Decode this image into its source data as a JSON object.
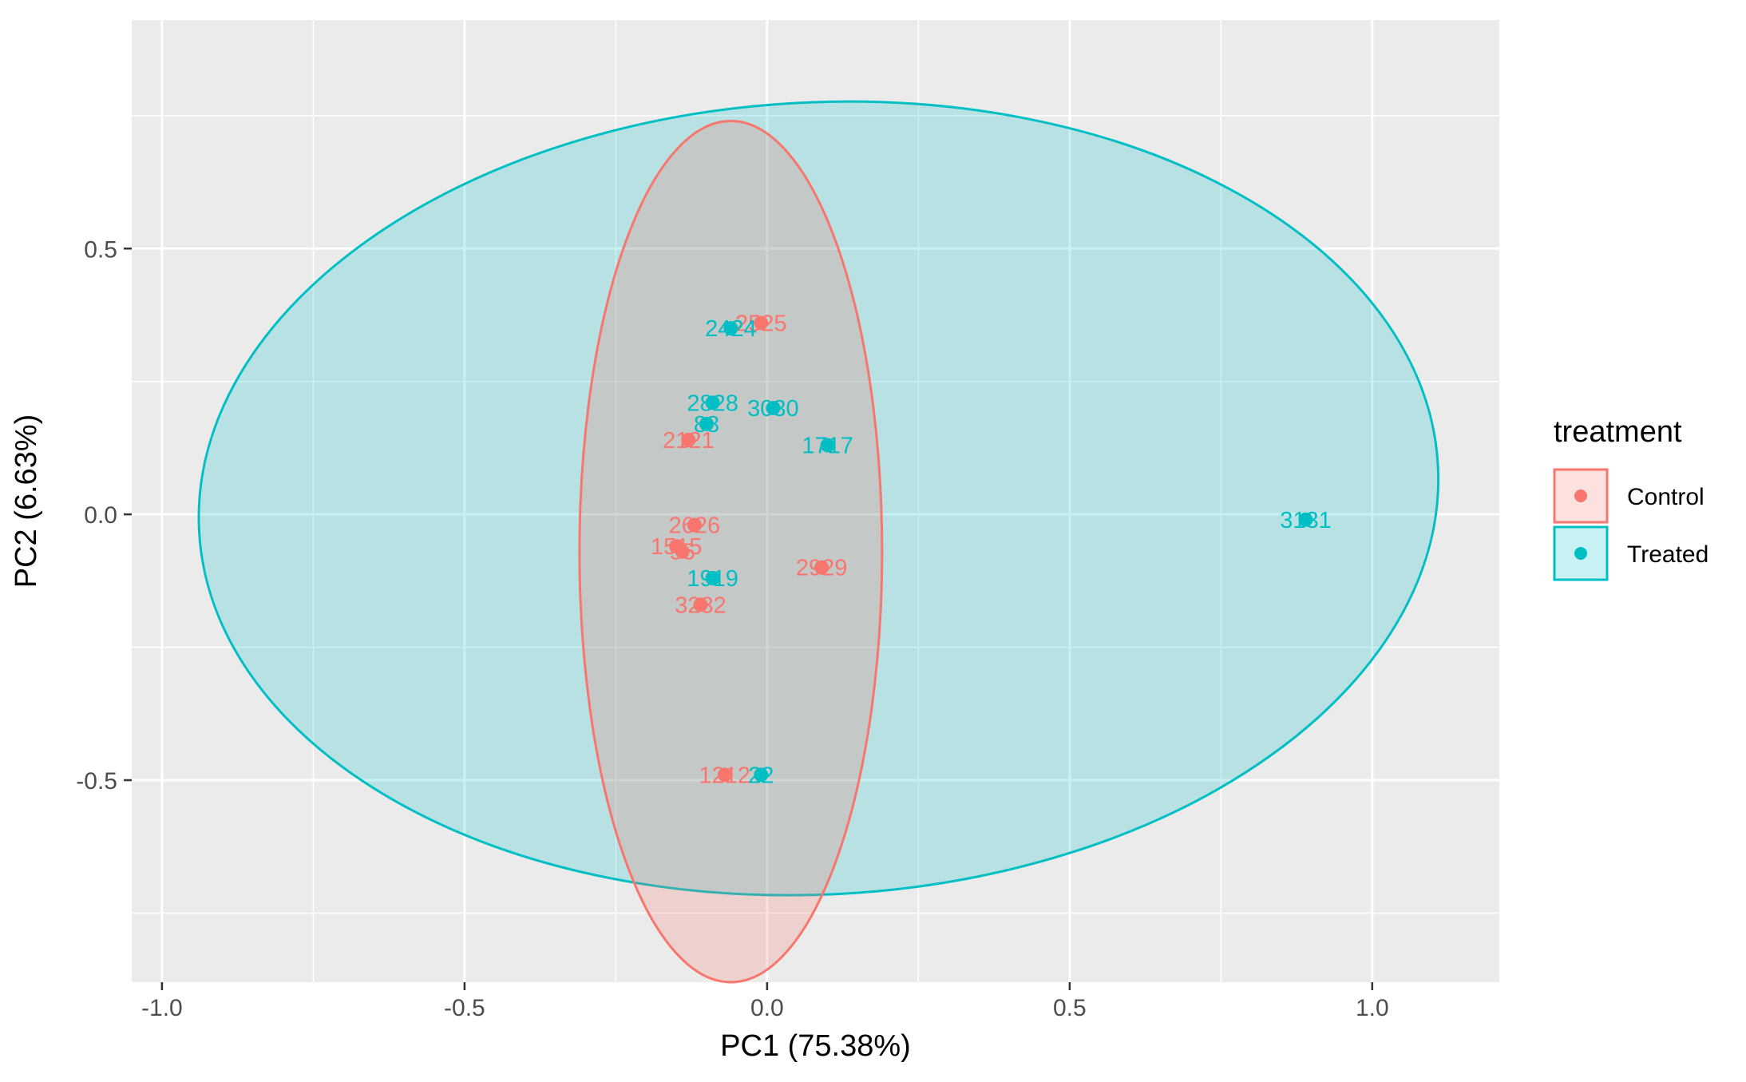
{
  "chart_data": {
    "type": "scatter",
    "title": "",
    "xlabel": "PC1 (75.38%)",
    "ylabel": "PC2 (6.63%)",
    "xlim": [
      -1.05,
      1.21
    ],
    "ylim": [
      -0.88,
      0.93
    ],
    "x_ticks": [
      {
        "value": -1.0,
        "label": "-1.0"
      },
      {
        "value": -0.5,
        "label": "-0.5"
      },
      {
        "value": 0.0,
        "label": "0.0"
      },
      {
        "value": 0.5,
        "label": "0.5"
      },
      {
        "value": 1.0,
        "label": "1.0"
      }
    ],
    "y_ticks": [
      {
        "value": -0.5,
        "label": "-0.5"
      },
      {
        "value": 0.0,
        "label": "0.0"
      },
      {
        "value": 0.5,
        "label": "0.5"
      }
    ],
    "grid": true,
    "background": "#ebebeb",
    "legend": {
      "title": "treatment",
      "placement": "right",
      "entries": [
        {
          "name": "Control",
          "color": "#F8766D"
        },
        {
          "name": "Treated",
          "color": "#00BFC4"
        }
      ]
    },
    "series": [
      {
        "name": "Control",
        "color": "#F8766D",
        "points": [
          {
            "x": -0.01,
            "y": 0.36,
            "label": "2525"
          },
          {
            "x": -0.13,
            "y": 0.14,
            "label": "2121"
          },
          {
            "x": -0.12,
            "y": -0.02,
            "label": "2626"
          },
          {
            "x": -0.15,
            "y": -0.06,
            "label": "1515"
          },
          {
            "x": -0.14,
            "y": -0.07,
            "label": "55"
          },
          {
            "x": 0.09,
            "y": -0.1,
            "label": "2929"
          },
          {
            "x": -0.11,
            "y": -0.17,
            "label": "3232"
          },
          {
            "x": -0.07,
            "y": -0.49,
            "label": "1212"
          }
        ],
        "ellipse": {
          "center": [
            -0.06,
            -0.07
          ],
          "rx": 0.25,
          "ry": 0.81,
          "angle_deg": 0
        }
      },
      {
        "name": "Treated",
        "color": "#00BFC4",
        "points": [
          {
            "x": -0.06,
            "y": 0.35,
            "label": "2424"
          },
          {
            "x": -0.09,
            "y": 0.21,
            "label": "2828"
          },
          {
            "x": -0.1,
            "y": 0.17,
            "label": "88"
          },
          {
            "x": 0.01,
            "y": 0.2,
            "label": "3030"
          },
          {
            "x": 0.1,
            "y": 0.13,
            "label": "1717"
          },
          {
            "x": -0.09,
            "y": -0.12,
            "label": "1919"
          },
          {
            "x": -0.01,
            "y": -0.49,
            "label": "22"
          },
          {
            "x": 0.89,
            "y": -0.01,
            "label": "3131"
          }
        ],
        "ellipse": {
          "center": [
            0.085,
            0.03
          ],
          "rx": 1.025,
          "ry": 0.745,
          "angle_deg": -3
        }
      }
    ]
  }
}
